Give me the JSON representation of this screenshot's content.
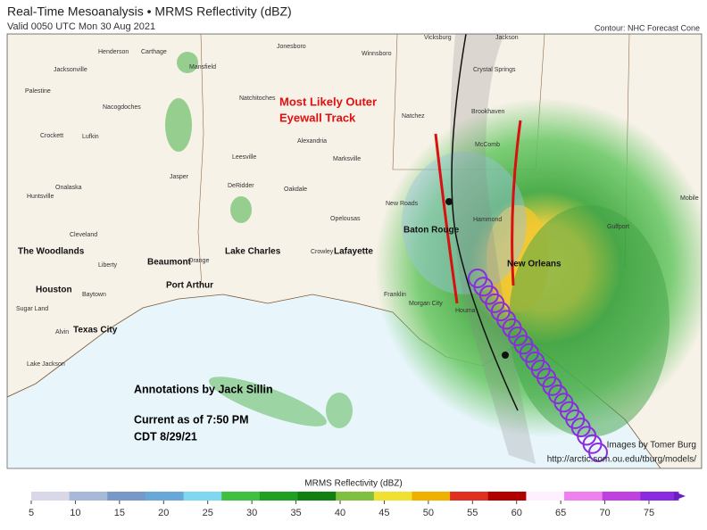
{
  "header": {
    "title": "Real-Time Mesoanalysis • MRMS Reflectivity (dBZ)",
    "subtitle": "Valid 0050 UTC Mon 30 Aug 2021",
    "contour_note": "Contour: NHC Forecast Cone"
  },
  "map": {
    "cities": [
      "Henderson",
      "Carthage",
      "Mansfield",
      "Jonesboro",
      "Winnsboro",
      "Vicksburg",
      "Jackson",
      "Jacksonville",
      "Crystal Springs",
      "Palestine",
      "Nacogdoches",
      "Natchitoches",
      "Natchez",
      "Brookhaven",
      "Crockett",
      "Lufkin",
      "Alexandria",
      "Marksville",
      "McComb",
      "Leesville",
      "Jasper",
      "DeRidder",
      "Oakdale",
      "Onalaska",
      "Huntsville",
      "New Roads",
      "Opelousas",
      "Cleveland",
      "Crowley",
      "Liberty",
      "Orange",
      "Baytown",
      "Sugar Land",
      "Franklin",
      "Morgan City",
      "Houma",
      "Alvin",
      "Lake Jackson",
      "Gulfport",
      "Mobile",
      "Hammond"
    ],
    "major_cities": [
      "The Woodlands",
      "Beaumont",
      "Lake Charles",
      "Lafayette",
      "Baton Rouge",
      "New Orleans",
      "Houston",
      "Port Arthur",
      "Texas City"
    ],
    "annotations": {
      "track_title_1": "Most Likely Outer",
      "track_title_2": "Eyewall Track",
      "author": "Annotations by Jack Sillin",
      "current_1": "Current as of 7:50 PM",
      "current_2": "CDT 8/29/21",
      "credit": "Images by Tomer Burg",
      "url": "http://arctic.som.ou.edu/tburg/models/"
    }
  },
  "colorbar": {
    "label": "MRMS Reflectivity (dBZ)",
    "ticks": [
      5,
      10,
      15,
      20,
      25,
      30,
      35,
      40,
      45,
      50,
      55,
      60,
      65,
      70,
      75
    ]
  }
}
